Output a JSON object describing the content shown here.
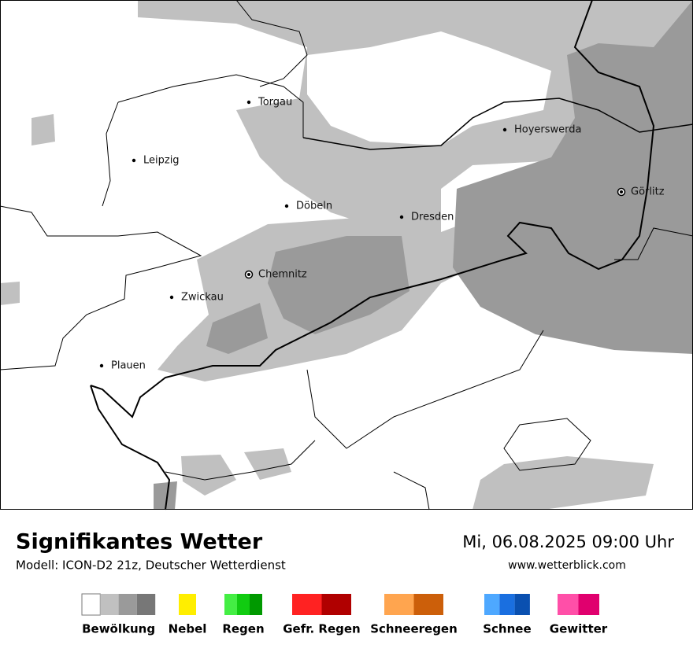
{
  "map": {
    "cities": [
      {
        "name": "Torgau"
      },
      {
        "name": "Leipzig"
      },
      {
        "name": "Döbeln"
      },
      {
        "name": "Dresden"
      },
      {
        "name": "Hoyerswerda"
      },
      {
        "name": "Görlitz"
      },
      {
        "name": "Chemnitz"
      },
      {
        "name": "Zwickau"
      },
      {
        "name": "Plauen"
      }
    ]
  },
  "footer": {
    "title": "Signifikantes Wetter",
    "subtitle": "Modell: ICON-D2 21z, Deutscher Wetterdienst",
    "datetime": "Mi, 06.08.2025 09:00 Uhr",
    "website": "www.wetterblick.com"
  },
  "legend": {
    "items": [
      {
        "label": "Bewölkung",
        "colors": [
          "#ffffff",
          "#c0c0c0",
          "#9a9a9a",
          "#777777"
        ]
      },
      {
        "label": "Nebel",
        "colors": [
          "#ffee00"
        ]
      },
      {
        "label": "Regen",
        "colors": [
          "#44ee44",
          "#11cc11",
          "#009900"
        ]
      },
      {
        "label": "Gefr. Regen",
        "colors": [
          "#ff2222",
          "#b00000"
        ]
      },
      {
        "label": "Schneeregen",
        "colors": [
          "#ffa54f",
          "#cc5f0a"
        ]
      },
      {
        "label": "Schnee",
        "colors": [
          "#4ea8ff",
          "#1a6fe0",
          "#0a50b0"
        ]
      },
      {
        "label": "Gewitter",
        "colors": [
          "#ff4fa8",
          "#e0006e"
        ]
      }
    ]
  }
}
